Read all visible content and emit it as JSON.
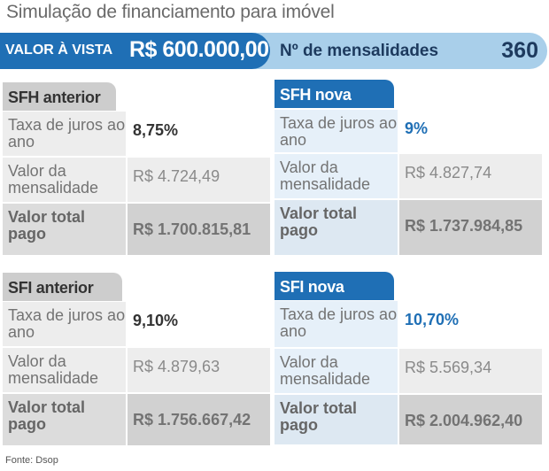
{
  "title": "Simulação de financiamento para imóvel",
  "header": {
    "valor_label": "VALOR À VISTA",
    "valor_value": "R$ 600.000,00",
    "mensalidades_label": "Nº de mensalidades",
    "mensalidades_value": "360"
  },
  "blocks": [
    {
      "tab": "SFH anterior",
      "style": "gray",
      "rows": [
        {
          "label": "Taxa de juros ao ano",
          "value": "8,75%"
        },
        {
          "label": "Valor da mensalidade",
          "value": "R$ 4.724,49"
        },
        {
          "label": "Valor total pago",
          "value": "R$ 1.700.815,81"
        }
      ]
    },
    {
      "tab": "SFH nova",
      "style": "blue",
      "rows": [
        {
          "label": "Taxa de juros ao ano",
          "value": "9%"
        },
        {
          "label": "Valor da mensalidade",
          "value": "R$ 4.827,74"
        },
        {
          "label": "Valor total pago",
          "value": "R$ 1.737.984,85"
        }
      ]
    },
    {
      "tab": "SFI anterior",
      "style": "gray",
      "rows": [
        {
          "label": "Taxa de juros ao ano",
          "value": "9,10%"
        },
        {
          "label": "Valor da mensalidade",
          "value": "R$ 4.879,63"
        },
        {
          "label": "Valor total pago",
          "value": "R$ 1.756.667,42"
        }
      ]
    },
    {
      "tab": "SFI nova",
      "style": "blue",
      "rows": [
        {
          "label": "Taxa de juros ao ano",
          "value": "10,70%"
        },
        {
          "label": "Valor da mensalidade",
          "value": "R$ 5.569,34"
        },
        {
          "label": "Valor total pago",
          "value": "R$ 2.004.962,40"
        }
      ]
    }
  ],
  "source": "Fonte: Dsop",
  "colors": {
    "accent_blue": "#1f6fb5",
    "light_blue": "#a9cfea",
    "gray_tab": "#cdcdcd"
  }
}
